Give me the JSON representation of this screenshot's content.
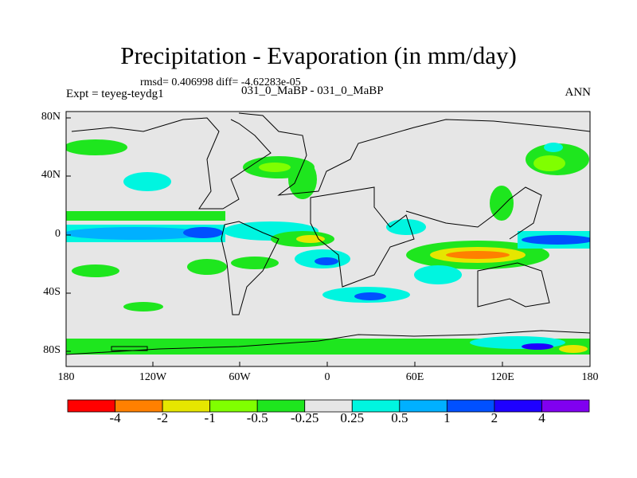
{
  "title": "Precipitation - Evaporation (in mm/day)",
  "stats": "rmsd= 0.406998 diff= -4.62283e-05",
  "left_string": "Expt = teyeg-teydg1",
  "center_string": "031_0_MaBP - 031_0_MaBP",
  "right_string": "ANN",
  "lat_labels": [
    "80N",
    "40N",
    "0",
    "40S",
    "80S"
  ],
  "lon_labels": [
    "180",
    "120W",
    "60W",
    "0",
    "60E",
    "120E",
    "180"
  ],
  "colorbar": {
    "labels": [
      "-4",
      "-2",
      "-1",
      "-0.5",
      "-0.25",
      "0.25",
      "0.5",
      "1",
      "2",
      "4"
    ],
    "colors": [
      "#ff0000",
      "#ff8000",
      "#e6e600",
      "#80ff00",
      "#1ee61e",
      "#e6e6e6",
      "#00f5e0",
      "#00b0ff",
      "#0050ff",
      "#1e00ff",
      "#8000f0"
    ]
  }
}
